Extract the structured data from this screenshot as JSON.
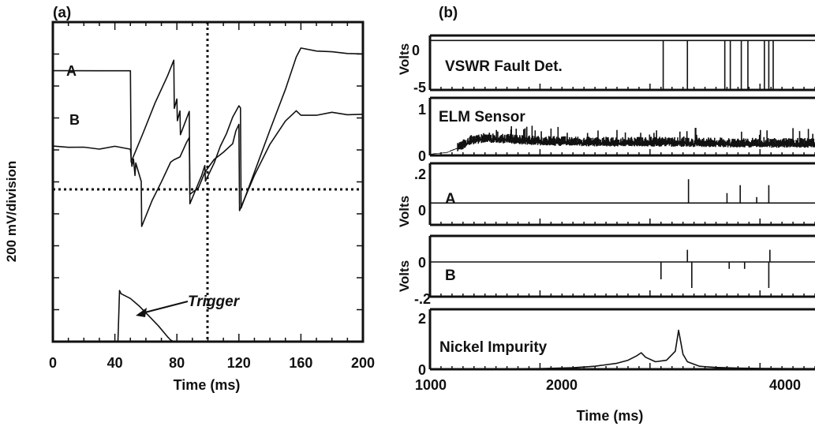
{
  "panel_a": {
    "label": "(a)",
    "ylabel": "200 mV/division",
    "xlabel": "Time (ms)",
    "trace_labels": {
      "a": "A",
      "b": "B"
    },
    "annotation": "Trigger"
  },
  "panel_b": {
    "label": "(b)",
    "xlabel": "Time (ms)",
    "ylabel_volts": "Volts",
    "titles": {
      "vswr": "VSWR Fault Det.",
      "elm": "ELM Sensor",
      "a": "A",
      "b": "B",
      "nickel": "Nickel Impurity"
    }
  },
  "chart_data": [
    {
      "type": "line",
      "title": "",
      "xlabel": "Time (ms)",
      "ylabel": "200 mV/division",
      "xlim": [
        0,
        200
      ],
      "ylim": [
        0,
        10
      ],
      "xticks": [
        0,
        40,
        80,
        120,
        160,
        200
      ],
      "grid": false,
      "series": [
        {
          "name": "A",
          "x": [
            0,
            50,
            50.5,
            58,
            66,
            74,
            78,
            78.3,
            80,
            80.3,
            82,
            82.3,
            88,
            88.4,
            96,
            98,
            98.4,
            104,
            108,
            112,
            116,
            120,
            121,
            121.4,
            130,
            140,
            150,
            157,
            160,
            170,
            180,
            190,
            200
          ],
          "y": [
            8.5,
            8.5,
            5.6,
            6.5,
            7.5,
            8.3,
            8.8,
            7.3,
            7.6,
            6.9,
            7.2,
            6.5,
            7.2,
            4.3,
            5.2,
            5.5,
            5.0,
            5.6,
            6.1,
            6.5,
            7.0,
            7.4,
            7.3,
            4.2,
            5.3,
            6.6,
            7.9,
            8.9,
            9.2,
            9.1,
            9.05,
            9.0,
            9.0
          ]
        },
        {
          "name": "B",
          "x": [
            0,
            10,
            20,
            30,
            40,
            50,
            51,
            52,
            53,
            53.5,
            57,
            57.3,
            64,
            70,
            76,
            78,
            82,
            86,
            88,
            88.4,
            94,
            98,
            104,
            110,
            116,
            118,
            120,
            120.4,
            130,
            140,
            150,
            157,
            160,
            170,
            180,
            190,
            200
          ],
          "y": [
            6.1,
            6.1,
            6.1,
            6.0,
            6.1,
            6.0,
            5.5,
            5.7,
            5.2,
            5.6,
            5.0,
            3.6,
            4.4,
            5.0,
            5.6,
            5.7,
            5.8,
            6.2,
            6.4,
            4.6,
            4.8,
            5.3,
            5.7,
            5.9,
            6.2,
            6.6,
            6.8,
            4.1,
            5.2,
            6.2,
            6.9,
            7.2,
            7.1,
            7.1,
            7.15,
            7.1,
            7.1
          ]
        },
        {
          "name": "Trigger",
          "x": [
            42,
            43,
            44,
            50,
            56,
            62,
            68,
            74,
            76,
            78
          ],
          "y": [
            0,
            1.6,
            1.5,
            1.35,
            1.1,
            0.8,
            0.5,
            0.15,
            0.05,
            0
          ]
        }
      ]
    },
    {
      "type": "line",
      "title": "VSWR Fault Det.",
      "ylabel": "Volts",
      "xlim": [
        1000,
        4500
      ],
      "ylim": [
        -5,
        0.5
      ],
      "yticks": [
        0,
        -5
      ],
      "ytick_labels": [
        "0",
        "-5"
      ],
      "spikes_x": [
        3120,
        3340,
        3680,
        3730,
        3830,
        3890,
        4040,
        4080,
        4120
      ],
      "spike_floor": -5
    },
    {
      "type": "line",
      "title": "ELM Sensor",
      "xlim": [
        1000,
        4500
      ],
      "ylim": [
        0,
        1
      ],
      "yticks": [
        0,
        1
      ],
      "ytick_labels": [
        "0",
        "1"
      ],
      "x": [
        1000,
        1150,
        1300,
        1350,
        1500,
        1750,
        2000,
        2500,
        3000,
        3500,
        4000,
        4500
      ],
      "y": [
        0.02,
        0.05,
        0.17,
        0.25,
        0.29,
        0.27,
        0.24,
        0.22,
        0.22,
        0.21,
        0.2,
        0.2
      ],
      "noise": 0.12
    },
    {
      "type": "line",
      "title": "A",
      "ylabel": "Volts",
      "xlim": [
        1000,
        4500
      ],
      "ylim": [
        -0.1,
        0.2
      ],
      "yticks": [
        0.2,
        0
      ],
      "ytick_labels": [
        ".2",
        "0"
      ],
      "spikes": [
        {
          "x": 3350,
          "y": 0.12
        },
        {
          "x": 3700,
          "y": 0.05
        },
        {
          "x": 3820,
          "y": 0.09
        },
        {
          "x": 3970,
          "y": 0.03
        },
        {
          "x": 4080,
          "y": 0.09
        }
      ]
    },
    {
      "type": "line",
      "title": "B",
      "ylabel": "Volts",
      "xlim": [
        1000,
        4500
      ],
      "ylim": [
        -0.2,
        0.15
      ],
      "yticks": [
        0,
        -0.2
      ],
      "ytick_labels": [
        "0",
        "-.2"
      ],
      "spikes": [
        {
          "x": 3100,
          "y": -0.1
        },
        {
          "x": 3340,
          "y": 0.07
        },
        {
          "x": 3380,
          "y": -0.15
        },
        {
          "x": 3720,
          "y": -0.04
        },
        {
          "x": 3860,
          "y": -0.04
        },
        {
          "x": 4080,
          "y": -0.15
        },
        {
          "x": 4090,
          "y": 0.07
        }
      ]
    },
    {
      "type": "line",
      "title": "Nickel Impurity",
      "xlabel": "Time (ms)",
      "xlim": [
        1000,
        4500
      ],
      "ylim": [
        0,
        2
      ],
      "yticks": [
        2,
        0
      ],
      "ytick_labels": [
        "2",
        "0"
      ],
      "xticks": [
        1000,
        2000,
        3000,
        4000
      ],
      "xtick_labels": [
        "1000",
        "2000",
        "",
        "4000"
      ],
      "x": [
        1000,
        1500,
        2000,
        2300,
        2500,
        2700,
        2800,
        2880,
        2920,
        2960,
        3050,
        3150,
        3230,
        3260,
        3280,
        3300,
        3340,
        3450,
        3600,
        3800,
        4000,
        4300,
        4500
      ],
      "y": [
        0.01,
        0.01,
        0.02,
        0.05,
        0.1,
        0.2,
        0.3,
        0.45,
        0.55,
        0.4,
        0.25,
        0.3,
        0.6,
        1.3,
        0.9,
        0.5,
        0.25,
        0.1,
        0.06,
        0.04,
        0.03,
        0.02,
        0.02
      ]
    }
  ]
}
